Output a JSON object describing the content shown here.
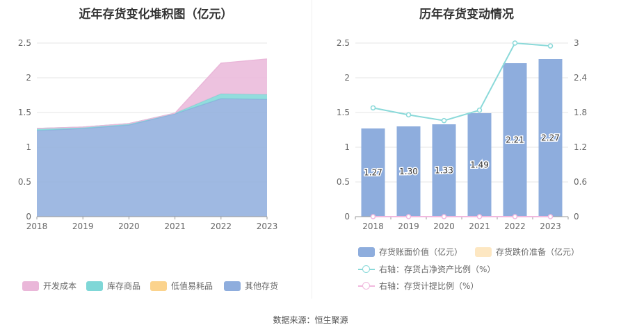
{
  "source": "数据来源：恒生聚源",
  "chart_data": [
    {
      "type": "area",
      "title": "近年存货变化堆积图（亿元）",
      "x": [
        "2018",
        "2019",
        "2020",
        "2021",
        "2022",
        "2023"
      ],
      "ylim": [
        0,
        2.5
      ],
      "yticks": [
        "0",
        "0.5",
        "1",
        "1.5",
        "2",
        "2.5"
      ],
      "stacked": true,
      "grid": true,
      "legend_position": "bottom",
      "series": [
        {
          "name": "其他存货",
          "color": "#8eaddd",
          "values": [
            1.24,
            1.27,
            1.32,
            1.48,
            1.7,
            1.69
          ]
        },
        {
          "name": "低值易耗品",
          "color": "#fbd38d",
          "values": [
            0,
            0,
            0,
            0,
            0,
            0
          ]
        },
        {
          "name": "库存商品",
          "color": "#7fd7d7",
          "values": [
            0.03,
            0.02,
            0.02,
            0.01,
            0.07,
            0.07
          ]
        },
        {
          "name": "开发成本",
          "color": "#eab7d9",
          "values": [
            0,
            0,
            0,
            0,
            0.44,
            0.51
          ]
        }
      ],
      "legend_order": [
        "开发成本",
        "库存商品",
        "低值易耗品",
        "其他存货"
      ]
    },
    {
      "type": "bar",
      "title": "历年存货变动情况",
      "categories": [
        "2018",
        "2019",
        "2020",
        "2021",
        "2022",
        "2023"
      ],
      "ylim": [
        0,
        2.5
      ],
      "yticks": [
        "0",
        "0.5",
        "1",
        "1.5",
        "2",
        "2.5"
      ],
      "y2lim": [
        0,
        3
      ],
      "y2ticks": [
        "0",
        "0.6",
        "1.2",
        "1.8",
        "2.4",
        "3"
      ],
      "grid": true,
      "legend_position": "bottom",
      "series": [
        {
          "name": "存货账面价值（亿元）",
          "type": "bar",
          "axis": "left",
          "color": "#8eaddd",
          "values": [
            1.27,
            1.3,
            1.33,
            1.49,
            2.21,
            2.27
          ],
          "labels": [
            "1.27",
            "1.30",
            "1.33",
            "1.49",
            "2.21",
            "2.27"
          ]
        },
        {
          "name": "存货跌价准备（亿元）",
          "type": "bar",
          "axis": "left",
          "color": "#fde7c2",
          "values": [
            0,
            0,
            0,
            0,
            0,
            0
          ]
        },
        {
          "name": "右轴：存货占净资产比例（%）",
          "type": "line",
          "axis": "right",
          "color": "#8ad9d9",
          "values": [
            1.88,
            1.76,
            1.66,
            1.84,
            3.0,
            2.95
          ]
        },
        {
          "name": "右轴：存货计提比例（%）",
          "type": "line",
          "axis": "right",
          "color": "#f1b8de",
          "values": [
            0,
            0,
            0,
            0,
            0,
            0
          ]
        }
      ]
    }
  ]
}
